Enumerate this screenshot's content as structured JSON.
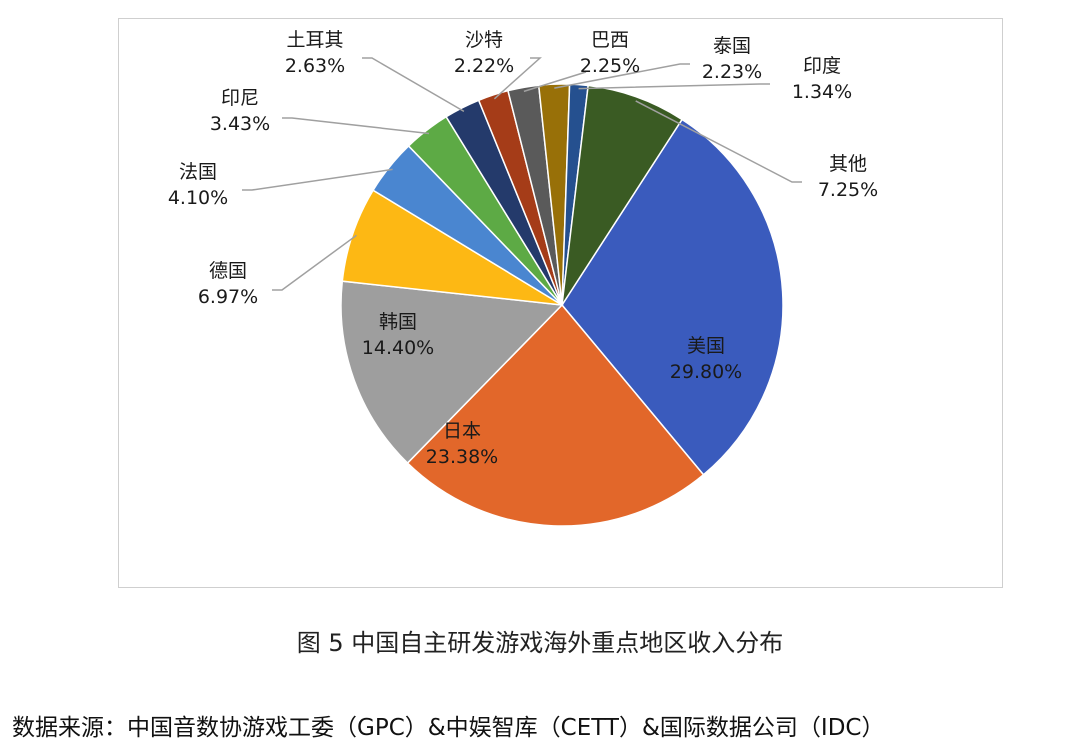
{
  "chart_data": {
    "type": "pie",
    "title": "",
    "slices": [
      {
        "label": "美国",
        "value": 29.8,
        "display": "29.80%",
        "color": "#3a5bbd",
        "label_pos": "inside"
      },
      {
        "label": "日本",
        "value": 23.38,
        "display": "23.38%",
        "color": "#e2672a",
        "label_pos": "inside"
      },
      {
        "label": "韩国",
        "value": 14.4,
        "display": "14.40%",
        "color": "#9e9e9e",
        "label_pos": "inside"
      },
      {
        "label": "德国",
        "value": 6.97,
        "display": "6.97%",
        "color": "#fdb814",
        "label_pos": "outside"
      },
      {
        "label": "法国",
        "value": 4.1,
        "display": "4.10%",
        "color": "#4a86d0",
        "label_pos": "outside"
      },
      {
        "label": "印尼",
        "value": 3.43,
        "display": "3.43%",
        "color": "#5daa45",
        "label_pos": "outside"
      },
      {
        "label": "土耳其",
        "value": 2.63,
        "display": "2.63%",
        "color": "#243a6b",
        "label_pos": "outside"
      },
      {
        "label": "沙特",
        "value": 2.22,
        "display": "2.22%",
        "color": "#a53c18",
        "label_pos": "outside"
      },
      {
        "label": "巴西",
        "value": 2.25,
        "display": "2.25%",
        "color": "#5a5a5a",
        "label_pos": "outside"
      },
      {
        "label": "泰国",
        "value": 2.23,
        "display": "2.23%",
        "color": "#987008",
        "label_pos": "outside"
      },
      {
        "label": "印度",
        "value": 1.34,
        "display": "1.34%",
        "color": "#25508f",
        "label_pos": "outside"
      },
      {
        "label": "其他",
        "value": 7.25,
        "display": "7.25%",
        "color": "#3a5b23",
        "label_pos": "outside"
      }
    ]
  },
  "caption": "图 5  中国自主研发游戏海外重点地区收入分布",
  "source": "数据来源：中国音数协游戏工委（GPC）&中娱智库（CETT）&国际数据公司（IDC）"
}
